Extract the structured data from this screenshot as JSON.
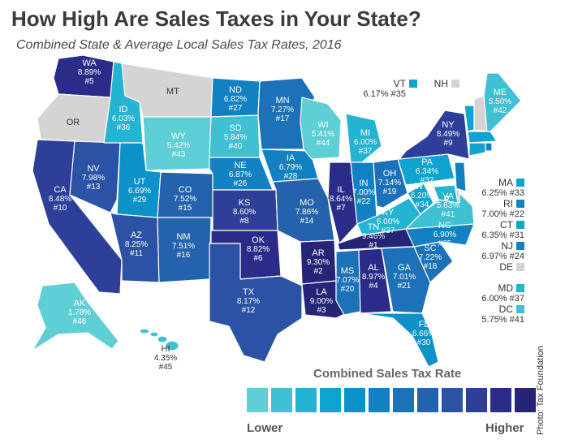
{
  "header": {
    "title": "How High Are Sales Taxes in Your State?",
    "subtitle": "Combined State & Average Local Sales Tax Rates, 2016"
  },
  "credit": "Photo: Tax Foundation",
  "colors": {
    "no_tax": "#d4d4d4",
    "scale": [
      "#5fcfd6",
      "#3fc0d3",
      "#22b4d1",
      "#0fa3cf",
      "#0c92c8",
      "#1281c2",
      "#1c71b8",
      "#2462ae",
      "#2b52a4",
      "#2d3f99",
      "#2b2c8a",
      "#262477"
    ]
  },
  "legend": {
    "title": "Combined Sales Tax Rate",
    "low_label": "Lower",
    "high_label": "Higher"
  },
  "states": [
    {
      "code": "WA",
      "rate": "8.89%",
      "rank": "#5",
      "color": "#2b2c8a"
    },
    {
      "code": "OR",
      "rate": "",
      "rank": "",
      "color": "#d4d4d4"
    },
    {
      "code": "CA",
      "rate": "8.48%",
      "rank": "#10",
      "color": "#2d3f99"
    },
    {
      "code": "NV",
      "rate": "7.98%",
      "rank": "#13",
      "color": "#2b52a4"
    },
    {
      "code": "ID",
      "rate": "6.03%",
      "rank": "#36",
      "color": "#22b4d1"
    },
    {
      "code": "MT",
      "rate": "",
      "rank": "",
      "color": "#d4d4d4"
    },
    {
      "code": "WY",
      "rate": "5.42%",
      "rank": "#43",
      "color": "#5fcfd6"
    },
    {
      "code": "UT",
      "rate": "6.69%",
      "rank": "#29",
      "color": "#0c92c8"
    },
    {
      "code": "AZ",
      "rate": "8.25%",
      "rank": "#11",
      "color": "#2b52a4"
    },
    {
      "code": "CO",
      "rate": "7.52%",
      "rank": "#15",
      "color": "#2462ae"
    },
    {
      "code": "NM",
      "rate": "7.51%",
      "rank": "#16",
      "color": "#2462ae"
    },
    {
      "code": "ND",
      "rate": "6.82%",
      "rank": "#27",
      "color": "#1281c2"
    },
    {
      "code": "SD",
      "rate": "5.84%",
      "rank": "#40",
      "color": "#3fc0d3"
    },
    {
      "code": "NE",
      "rate": "6.87%",
      "rank": "#26",
      "color": "#1281c2"
    },
    {
      "code": "KS",
      "rate": "8.60%",
      "rank": "#8",
      "color": "#2d3f99"
    },
    {
      "code": "OK",
      "rate": "8.82%",
      "rank": "#6",
      "color": "#2b2c8a"
    },
    {
      "code": "TX",
      "rate": "8.17%",
      "rank": "#12",
      "color": "#2b52a4"
    },
    {
      "code": "MN",
      "rate": "7.27%",
      "rank": "#17",
      "color": "#1c71b8"
    },
    {
      "code": "IA",
      "rate": "6.79%",
      "rank": "#28",
      "color": "#1281c2"
    },
    {
      "code": "MO",
      "rate": "7.86%",
      "rank": "#14",
      "color": "#2462ae"
    },
    {
      "code": "AR",
      "rate": "9.30%",
      "rank": "#2",
      "color": "#262477"
    },
    {
      "code": "LA",
      "rate": "9.00%",
      "rank": "#3",
      "color": "#262477"
    },
    {
      "code": "WI",
      "rate": "5.41%",
      "rank": "#44",
      "color": "#5fcfd6"
    },
    {
      "code": "IL",
      "rate": "8.64%",
      "rank": "#7",
      "color": "#2b2c8a"
    },
    {
      "code": "MI",
      "rate": "6.00%",
      "rank": "#37",
      "color": "#22b4d1"
    },
    {
      "code": "IN",
      "rate": "7.00%",
      "rank": "#22",
      "color": "#1281c2"
    },
    {
      "code": "OH",
      "rate": "7.14%",
      "rank": "#19",
      "color": "#1c71b8"
    },
    {
      "code": "KY",
      "rate": "6.00%",
      "rank": "#37",
      "color": "#22b4d1"
    },
    {
      "code": "TN",
      "rate": "9.46%",
      "rank": "#1",
      "color": "#262477"
    },
    {
      "code": "MS",
      "rate": "7.07%",
      "rank": "#20",
      "color": "#1c71b8"
    },
    {
      "code": "AL",
      "rate": "8.97%",
      "rank": "#4",
      "color": "#2b2c8a"
    },
    {
      "code": "GA",
      "rate": "7.01%",
      "rank": "#21",
      "color": "#1c71b8"
    },
    {
      "code": "FL",
      "rate": "6.66%",
      "rank": "#30",
      "color": "#0c92c8"
    },
    {
      "code": "SC",
      "rate": "7.22%",
      "rank": "#18",
      "color": "#1c71b8"
    },
    {
      "code": "NC",
      "rate": "6.90%",
      "rank": "#25",
      "color": "#1281c2"
    },
    {
      "code": "VA",
      "rate": "5.63%",
      "rank": "#41",
      "color": "#3fc0d3"
    },
    {
      "code": "WV",
      "rate": "6.20%",
      "rank": "#34",
      "color": "#0fa3cf"
    },
    {
      "code": "PA",
      "rate": "6.34%",
      "rank": "#32",
      "color": "#0fa3cf"
    },
    {
      "code": "NY",
      "rate": "8.49%",
      "rank": "#9",
      "color": "#2d3f99"
    },
    {
      "code": "VT",
      "rate": "6.17%",
      "rank": "#35",
      "color": "#0fa3cf"
    },
    {
      "code": "NH",
      "rate": "",
      "rank": "",
      "color": "#d4d4d4"
    },
    {
      "code": "ME",
      "rate": "5.50%",
      "rank": "#42",
      "color": "#3fc0d3"
    },
    {
      "code": "MA",
      "rate": "6.25%",
      "rank": "#33",
      "color": "#0fa3cf"
    },
    {
      "code": "RI",
      "rate": "7.00%",
      "rank": "#22",
      "color": "#1281c2"
    },
    {
      "code": "CT",
      "rate": "6.35%",
      "rank": "#31",
      "color": "#0fa3cf"
    },
    {
      "code": "NJ",
      "rate": "6.97%",
      "rank": "#24",
      "color": "#1281c2"
    },
    {
      "code": "DE",
      "rate": "",
      "rank": "",
      "color": "#d4d4d4"
    },
    {
      "code": "MD",
      "rate": "6.00%",
      "rank": "#37",
      "color": "#22b4d1"
    },
    {
      "code": "DC",
      "rate": "5.75%",
      "rank": "#41",
      "color": "#3fc0d3"
    },
    {
      "code": "AK",
      "rate": "1.78%",
      "rank": "#46",
      "color": "#5fcfd6"
    },
    {
      "code": "HI",
      "rate": "4.35%",
      "rank": "#45",
      "color": "#ffffff"
    }
  ]
}
